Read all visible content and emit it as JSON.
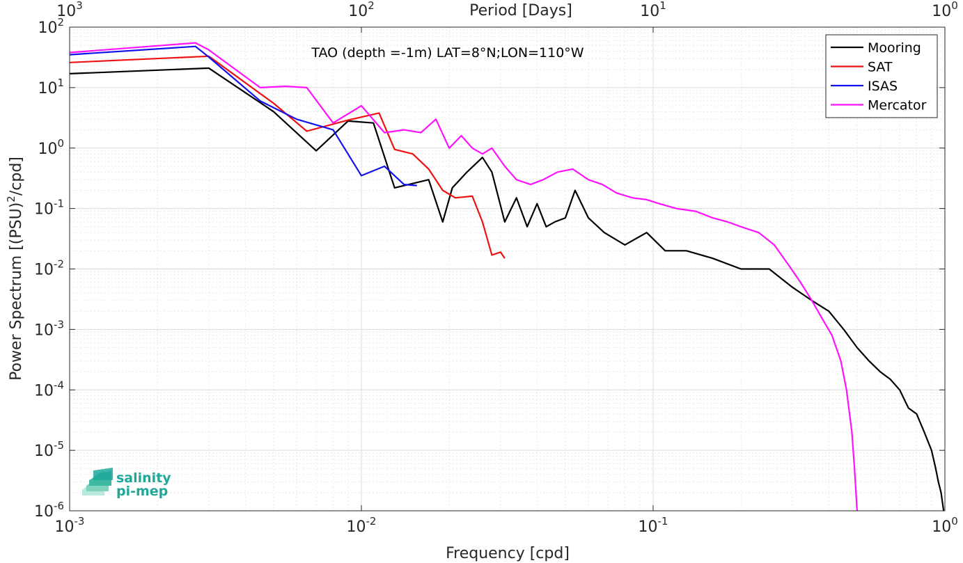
{
  "chart_data": {
    "type": "line",
    "title": "TAO (depth =-1m) LAT=8°N;LON=110°W",
    "xlabel": "Frequency [cpd]",
    "ylabel_main": "Power Spectrum [(PSU)",
    "ylabel_sup": "2",
    "ylabel_tail": "/cpd]",
    "top_xlabel": "Period [Days]",
    "x_scale": "log",
    "y_scale": "log",
    "xlim": [
      0.001,
      1
    ],
    "ylim": [
      1e-06,
      100
    ],
    "x_ticks": [
      {
        "value": 0.001,
        "base": "10",
        "exp": "-3"
      },
      {
        "value": 0.01,
        "base": "10",
        "exp": "-2"
      },
      {
        "value": 0.1,
        "base": "10",
        "exp": "-1"
      },
      {
        "value": 1,
        "base": "10",
        "exp": "0"
      }
    ],
    "y_ticks": [
      {
        "value": 1e-06,
        "base": "10",
        "exp": "-6"
      },
      {
        "value": 1e-05,
        "base": "10",
        "exp": "-5"
      },
      {
        "value": 0.0001,
        "base": "10",
        "exp": "-4"
      },
      {
        "value": 0.001,
        "base": "10",
        "exp": "-3"
      },
      {
        "value": 0.01,
        "base": "10",
        "exp": "-2"
      },
      {
        "value": 0.1,
        "base": "10",
        "exp": "-1"
      },
      {
        "value": 1,
        "base": "10",
        "exp": "0"
      },
      {
        "value": 10,
        "base": "10",
        "exp": "1"
      },
      {
        "value": 100,
        "base": "10",
        "exp": "2"
      }
    ],
    "top_ticks": [
      {
        "period": 1000,
        "base": "10",
        "exp": "3"
      },
      {
        "period": 100,
        "base": "10",
        "exp": "2"
      },
      {
        "period": 10,
        "base": "10",
        "exp": "1"
      },
      {
        "period": 1,
        "base": "10",
        "exp": "0"
      }
    ],
    "grid": true,
    "legend_position": "top-right",
    "series": [
      {
        "name": "Mooring",
        "color": "#000000",
        "x": [
          0.001,
          0.003,
          0.005,
          0.007,
          0.009,
          0.011,
          0.013,
          0.017,
          0.019,
          0.0205,
          0.023,
          0.026,
          0.028,
          0.031,
          0.034,
          0.037,
          0.04,
          0.043,
          0.046,
          0.05,
          0.054,
          0.06,
          0.068,
          0.08,
          0.095,
          0.11,
          0.13,
          0.16,
          0.2,
          0.25,
          0.3,
          0.35,
          0.4,
          0.45,
          0.5,
          0.55,
          0.6,
          0.65,
          0.7,
          0.75,
          0.8,
          0.85,
          0.9,
          0.93,
          0.95,
          0.97,
          0.99
        ],
        "y": [
          17,
          21,
          4,
          0.9,
          2.8,
          2.6,
          0.22,
          0.3,
          0.06,
          0.22,
          0.4,
          0.7,
          0.4,
          0.06,
          0.15,
          0.05,
          0.12,
          0.05,
          0.06,
          0.07,
          0.2,
          0.07,
          0.04,
          0.025,
          0.04,
          0.02,
          0.02,
          0.015,
          0.01,
          0.01,
          0.005,
          0.003,
          0.002,
          0.001,
          0.0005,
          0.0003,
          0.0002,
          0.00015,
          0.0001,
          5e-05,
          4e-05,
          2e-05,
          1e-05,
          5e-06,
          3e-06,
          2e-06,
          1e-06
        ]
      },
      {
        "name": "SAT",
        "color": "#ee1111",
        "x": [
          0.001,
          0.003,
          0.005,
          0.0065,
          0.009,
          0.0115,
          0.013,
          0.015,
          0.017,
          0.019,
          0.021,
          0.024,
          0.026,
          0.028,
          0.03,
          0.031
        ],
        "y": [
          26,
          33,
          5.5,
          1.9,
          2.9,
          3.8,
          0.95,
          0.8,
          0.45,
          0.2,
          0.15,
          0.16,
          0.06,
          0.017,
          0.019,
          0.015
        ]
      },
      {
        "name": "ISAS",
        "color": "#1111ee",
        "x": [
          0.001,
          0.0027,
          0.003,
          0.0045,
          0.006,
          0.008,
          0.01,
          0.012,
          0.014,
          0.0155
        ],
        "y": [
          35,
          48,
          32,
          6,
          3,
          2,
          0.35,
          0.5,
          0.25,
          0.24
        ]
      },
      {
        "name": "Mercator",
        "color": "#ff11ff",
        "x": [
          0.001,
          0.0027,
          0.003,
          0.0045,
          0.0055,
          0.0065,
          0.008,
          0.01,
          0.012,
          0.014,
          0.016,
          0.018,
          0.02,
          0.022,
          0.024,
          0.026,
          0.028,
          0.031,
          0.034,
          0.038,
          0.042,
          0.047,
          0.053,
          0.06,
          0.067,
          0.075,
          0.085,
          0.095,
          0.105,
          0.12,
          0.14,
          0.16,
          0.18,
          0.2,
          0.23,
          0.26,
          0.29,
          0.32,
          0.35,
          0.38,
          0.41,
          0.44,
          0.46,
          0.48,
          0.49,
          0.5
        ],
        "y": [
          38,
          55,
          42,
          10,
          10.5,
          10,
          2.6,
          5,
          1.8,
          2,
          1.8,
          3,
          1,
          1.6,
          1,
          0.8,
          1,
          0.5,
          0.3,
          0.25,
          0.3,
          0.4,
          0.45,
          0.3,
          0.25,
          0.18,
          0.15,
          0.14,
          0.12,
          0.1,
          0.09,
          0.07,
          0.06,
          0.05,
          0.04,
          0.025,
          0.012,
          0.006,
          0.003,
          0.0015,
          0.0008,
          0.0003,
          0.0001,
          2e-05,
          5e-06,
          1e-06
        ]
      }
    ]
  },
  "logo": {
    "line1": "salinity",
    "line2": "pi-mep",
    "color": "#1fa89a"
  }
}
